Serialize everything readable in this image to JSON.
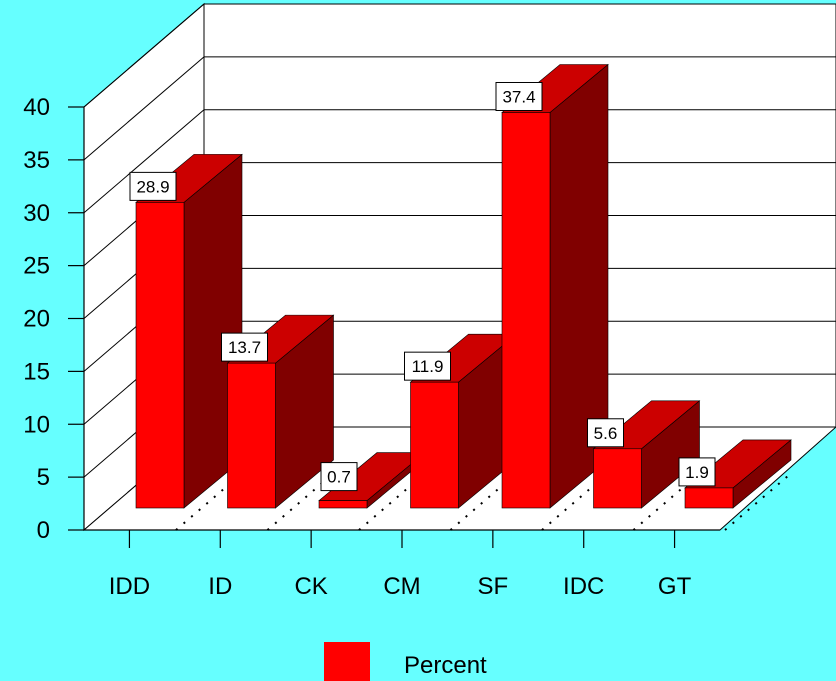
{
  "chart_data": {
    "type": "bar",
    "categories": [
      "IDD",
      "ID",
      "CK",
      "CM",
      "SF",
      "IDC",
      "GT"
    ],
    "series": [
      {
        "name": "Percent",
        "values": [
          28.9,
          13.7,
          0.7,
          11.9,
          37.4,
          5.6,
          1.9
        ]
      }
    ],
    "y_ticks": [
      "0",
      "5",
      "10",
      "15",
      "20",
      "25",
      "30",
      "35",
      "40"
    ],
    "ylim": [
      0,
      40
    ],
    "grid": true,
    "legend_position": "bottom",
    "three_d": true,
    "colors": {
      "background": "#66ffff",
      "bar_front": "#ff0000",
      "bar_side": "#800000",
      "bar_top": "#cc0000",
      "plot_wall": "#ffffff"
    }
  }
}
